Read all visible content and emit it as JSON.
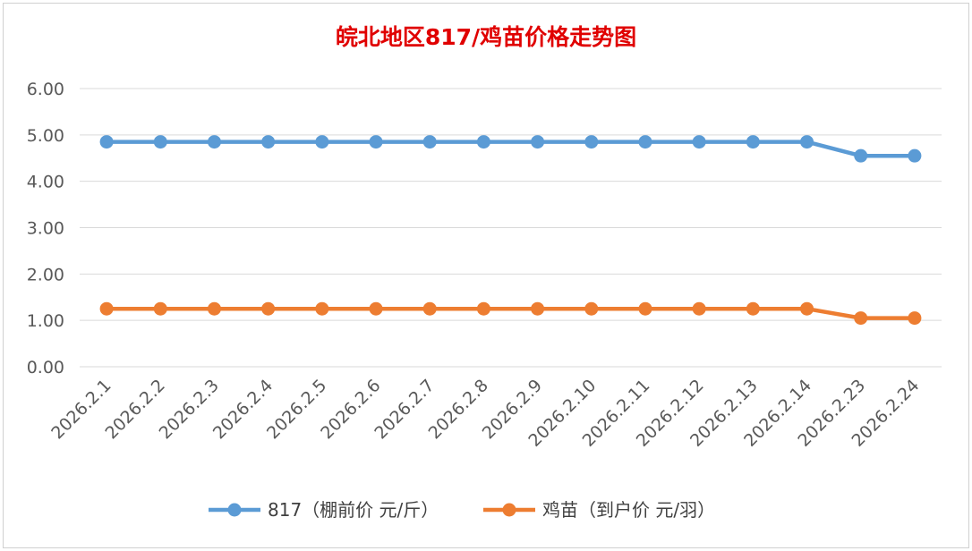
{
  "chart_data": {
    "type": "line",
    "title": "皖北地区817/鸡苗价格走势图",
    "categories": [
      "2026.2.1",
      "2026.2.2",
      "2026.2.3",
      "2026.2.4",
      "2026.2.5",
      "2026.2.6",
      "2026.2.7",
      "2026.2.8",
      "2026.2.9",
      "2026.2.10",
      "2026.2.11",
      "2026.2.12",
      "2026.2.13",
      "2026.2.14",
      "2026.2.23",
      "2026.2.24"
    ],
    "y_ticks": [
      "0.00",
      "1.00",
      "2.00",
      "3.00",
      "4.00",
      "5.00",
      "6.00"
    ],
    "ylim": [
      0,
      6
    ],
    "grid": "horizontal",
    "legend_position": "bottom",
    "series": [
      {
        "name": "817（棚前价 元/斤）",
        "color": "#5b9bd5",
        "values": [
          4.85,
          4.85,
          4.85,
          4.85,
          4.85,
          4.85,
          4.85,
          4.85,
          4.85,
          4.85,
          4.85,
          4.85,
          4.85,
          4.85,
          4.55,
          4.55
        ]
      },
      {
        "name": "鸡苗（到户价 元/羽）",
        "color": "#ed7d31",
        "values": [
          1.25,
          1.25,
          1.25,
          1.25,
          1.25,
          1.25,
          1.25,
          1.25,
          1.25,
          1.25,
          1.25,
          1.25,
          1.25,
          1.25,
          1.05,
          1.05
        ]
      }
    ]
  }
}
